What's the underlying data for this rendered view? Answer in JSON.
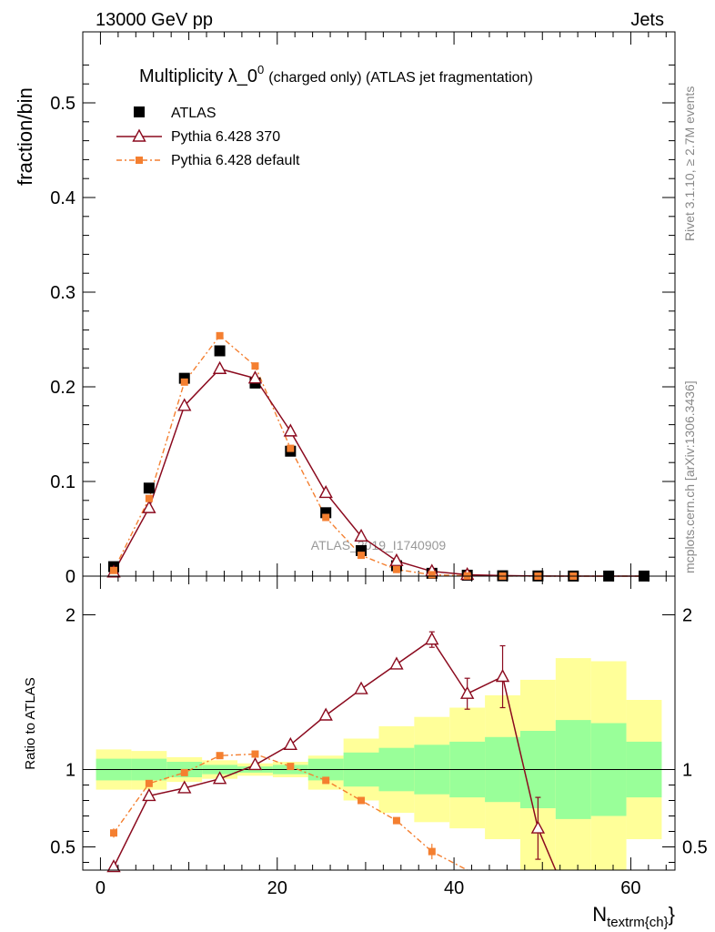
{
  "header": {
    "left_label": "13000 GeV pp",
    "right_label": "Jets"
  },
  "side_labels": {
    "rivet": "Rivet 3.1.10, ≥ 2.7M events",
    "mcplots": "mcplots.cern.ch [arXiv:1306.3436]"
  },
  "colors": {
    "atlas": "#000000",
    "pythia370": "#8b0a1e",
    "pythia_default": "#f47f30",
    "band_inner": "#99ff99",
    "band_outer": "#ffff99"
  },
  "chart_data": [
    {
      "type": "scatter",
      "title_main": "Multiplicity λ_0",
      "title_sup": "0",
      "title_rest": "(charged only) (ATLAS jet fragmentation)",
      "ylabel": "fraction/bin",
      "watermark": "ATLAS_2019_I1740909",
      "xlim": [
        -2,
        65
      ],
      "ylim": [
        0,
        0.575
      ],
      "yticks": [
        0,
        0.1,
        0.2,
        0.3,
        0.4,
        0.5
      ],
      "ytick_labels": [
        "0",
        "0.1",
        "0.2",
        "0.3",
        "0.4",
        "0.5"
      ],
      "legend": [
        "ATLAS",
        "Pythia 6.428 370",
        "Pythia 6.428 default"
      ],
      "legend_position": "top-left",
      "x": [
        1.5,
        5.5,
        9.5,
        13.5,
        17.5,
        21.5,
        25.5,
        29.5,
        33.5,
        37.5,
        41.5,
        45.5,
        49.5,
        53.5,
        57.5,
        61.5
      ],
      "series": [
        {
          "name": "ATLAS",
          "values": [
            0.01,
            0.093,
            0.209,
            0.238,
            0.204,
            0.132,
            0.067,
            0.027,
            0.011,
            0.003,
            0.001,
            0.0004,
            0.0002,
            0.0001,
            0.0001,
            0.0001
          ]
        },
        {
          "name": "Pythia 6.428 370",
          "values": [
            0.004,
            0.072,
            0.18,
            0.219,
            0.209,
            0.153,
            0.088,
            0.042,
            0.016,
            0.005,
            0.0015,
            0.0006,
            0.0001,
            0,
            0,
            0
          ]
        },
        {
          "name": "Pythia 6.428 default",
          "values": [
            0.006,
            0.082,
            0.205,
            0.254,
            0.222,
            0.135,
            0.062,
            0.022,
            0.007,
            0.0015,
            0.0003,
            5e-05,
            0,
            0,
            0,
            0
          ]
        }
      ]
    },
    {
      "type": "line",
      "ylabel": "Ratio to ATLAS",
      "xlabel_main": "N",
      "xlabel_sub": "textrm{ch}",
      "xlabel_tail": "}",
      "xlim": [
        -2,
        65
      ],
      "ylim": [
        0.35,
        2.25
      ],
      "yticks": [
        0.5,
        1,
        2
      ],
      "ytick_labels": [
        "0.5",
        "1",
        "2"
      ],
      "xticks": [
        0,
        20,
        40,
        60
      ],
      "xtick_labels": [
        "0",
        "20",
        "40",
        "60"
      ],
      "reference_line": 1,
      "band_edges": [
        -0.5,
        3.5,
        7.5,
        11.5,
        15.5,
        19.5,
        23.5,
        27.5,
        31.5,
        35.5,
        39.5,
        43.5,
        47.5,
        51.5,
        55.5,
        59.5,
        63.5
      ],
      "band_inner_low": [
        0.93,
        0.93,
        0.95,
        0.97,
        0.98,
        0.97,
        0.93,
        0.89,
        0.86,
        0.84,
        0.82,
        0.79,
        0.75,
        0.68,
        0.7,
        0.82
      ],
      "band_inner_high": [
        1.07,
        1.07,
        1.05,
        1.03,
        1.02,
        1.03,
        1.07,
        1.11,
        1.14,
        1.16,
        1.18,
        1.21,
        1.25,
        1.32,
        1.3,
        1.18
      ],
      "band_outer_low": [
        0.87,
        0.87,
        0.92,
        0.94,
        0.96,
        0.95,
        0.87,
        0.8,
        0.72,
        0.66,
        0.62,
        0.55,
        0.35,
        0.35,
        0.35,
        0.55
      ],
      "band_outer_high": [
        1.13,
        1.12,
        1.08,
        1.06,
        1.04,
        1.05,
        1.09,
        1.2,
        1.28,
        1.34,
        1.4,
        1.48,
        1.58,
        1.72,
        1.7,
        1.45
      ],
      "x": [
        1.5,
        5.5,
        9.5,
        13.5,
        17.5,
        21.5,
        25.5,
        29.5,
        33.5,
        37.5,
        41.5,
        45.5,
        49.5
      ],
      "series": [
        {
          "name": "Pythia 6.428 370",
          "values": [
            0.37,
            0.83,
            0.88,
            0.94,
            1.03,
            1.16,
            1.35,
            1.52,
            1.68,
            1.84,
            1.49,
            1.6,
            0.62
          ],
          "err": [
            0,
            0,
            0,
            0,
            0,
            0,
            0,
            0,
            0,
            0.05,
            0.1,
            0.2,
            0.2
          ]
        },
        {
          "name": "Pythia 6.428 default",
          "values": [
            0.59,
            0.91,
            0.98,
            1.09,
            1.1,
            1.02,
            0.93,
            0.8,
            0.67,
            0.47,
            0.28,
            null,
            null
          ],
          "err": [
            0.03,
            0,
            0,
            0,
            0,
            0,
            0,
            0,
            0.02,
            0.05,
            0,
            0,
            0
          ]
        }
      ]
    }
  ]
}
